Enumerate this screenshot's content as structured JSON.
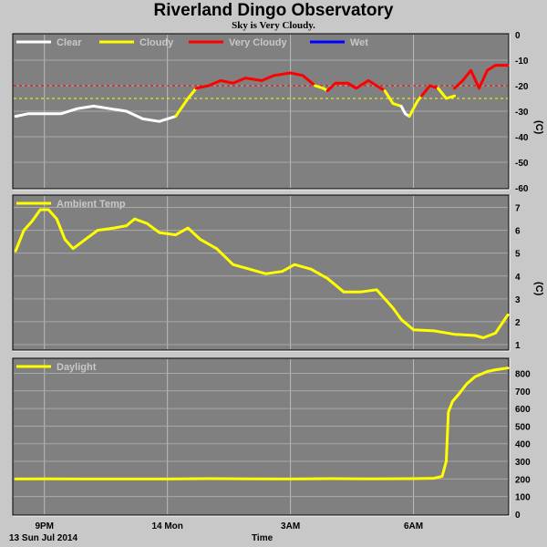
{
  "title": "Riverland Dingo Observatory",
  "subtitle": "Sky is Very Cloudy.",
  "xaxis": {
    "label": "Time",
    "date_label": "13 Sun Jul 2014",
    "ticks": [
      {
        "label": "9PM",
        "hour": 21
      },
      {
        "label": "14 Mon",
        "hour": 24
      },
      {
        "label": "3AM",
        "hour": 27
      },
      {
        "label": "6AM",
        "hour": 30
      }
    ],
    "start_hour": 20.25,
    "end_hour": 32.3
  },
  "chart_data": [
    {
      "type": "line",
      "name": "sky",
      "ylabel": "(C)",
      "ylim": [
        -60,
        0
      ],
      "yticks": [
        0,
        -10,
        -20,
        -30,
        -40,
        -50,
        -60
      ],
      "grid": true,
      "legend": [
        {
          "name": "Clear",
          "color": "#ffffff"
        },
        {
          "name": "Cloudy",
          "color": "#ffff00"
        },
        {
          "name": "Very Cloudy",
          "color": "#ff0000"
        },
        {
          "name": "Wet",
          "color": "#0000ff"
        }
      ],
      "thresholds": [
        {
          "value": -20,
          "color": "#ff0000"
        },
        {
          "value": -25,
          "color": "#ffff00"
        }
      ],
      "series": [
        {
          "name": "Clear",
          "color": "#ffffff",
          "x": [
            20.3,
            20.6,
            21.0,
            21.4,
            21.8,
            22.2,
            22.6,
            23.0,
            23.4,
            23.8,
            24.2
          ],
          "y": [
            -32,
            -31,
            -31,
            -31,
            -29,
            -28,
            -29,
            -30,
            -33,
            -34,
            -32
          ]
        },
        {
          "name": "Cloudy",
          "color": "#ffff00",
          "x": [
            24.2,
            24.5,
            24.7
          ],
          "y": [
            -32,
            -25,
            -21
          ]
        },
        {
          "name": "Very Cloudy",
          "color": "#ff0000",
          "x": [
            24.7,
            25.0,
            25.3,
            25.6,
            25.9,
            26.3,
            26.6,
            27.0,
            27.3,
            27.6
          ],
          "y": [
            -21,
            -20,
            -18,
            -19,
            -17,
            -18,
            -16,
            -15,
            -16,
            -20
          ]
        },
        {
          "name": "Cloudy",
          "color": "#ffff00",
          "x": [
            27.6,
            27.8,
            27.9
          ],
          "y": [
            -20,
            -21,
            -22
          ]
        },
        {
          "name": "Very Cloudy",
          "color": "#ff0000",
          "x": [
            27.9,
            28.1,
            28.4,
            28.6,
            28.9,
            29.1,
            29.3
          ],
          "y": [
            -22,
            -19,
            -19,
            -21,
            -18,
            -20,
            -22
          ]
        },
        {
          "name": "Cloudy",
          "color": "#ffff00",
          "x": [
            29.3,
            29.5,
            29.7
          ],
          "y": [
            -22,
            -27,
            -28
          ]
        },
        {
          "name": "Clear",
          "color": "#ffffff",
          "x": [
            29.7,
            29.8,
            29.9
          ],
          "y": [
            -28,
            -31,
            -32
          ]
        },
        {
          "name": "Cloudy",
          "color": "#ffff00",
          "x": [
            29.9,
            30.1,
            30.2
          ],
          "y": [
            -32,
            -26,
            -24
          ]
        },
        {
          "name": "Very Cloudy",
          "color": "#ff0000",
          "x": [
            30.2,
            30.4,
            30.6
          ],
          "y": [
            -24,
            -20,
            -21
          ]
        },
        {
          "name": "Cloudy",
          "color": "#ffff00",
          "x": [
            30.6,
            30.8,
            31.0
          ],
          "y": [
            -21,
            -25,
            -24
          ]
        },
        {
          "name": "Very Cloudy",
          "color": "#ff0000",
          "x": [
            31.0,
            31.2,
            31.4,
            31.6,
            31.8,
            32.0,
            32.3
          ],
          "y": [
            -21,
            -18,
            -14,
            -21,
            -14,
            -12,
            -12
          ]
        }
      ]
    },
    {
      "type": "line",
      "name": "ambient",
      "ylabel": "(C)",
      "ylim": [
        0.8,
        7.5
      ],
      "yticks": [
        1,
        2,
        3,
        4,
        5,
        6,
        7
      ],
      "grid": true,
      "legend": [
        {
          "name": "Ambient Temp",
          "color": "#ffff00"
        }
      ],
      "series": [
        {
          "name": "Ambient Temp",
          "color": "#ffff00",
          "x": [
            20.3,
            20.5,
            20.7,
            20.9,
            21.1,
            21.3,
            21.5,
            21.7,
            22.0,
            22.3,
            22.7,
            23.0,
            23.2,
            23.5,
            23.8,
            24.2,
            24.5,
            24.8,
            25.2,
            25.6,
            26.0,
            26.4,
            26.8,
            27.1,
            27.5,
            27.9,
            28.3,
            28.7,
            29.1,
            29.5,
            29.7,
            30.0,
            30.5,
            31.0,
            31.5,
            31.7,
            32.0,
            32.3
          ],
          "y": [
            5.1,
            6.0,
            6.4,
            6.9,
            6.9,
            6.5,
            5.6,
            5.2,
            5.6,
            6.0,
            6.1,
            6.2,
            6.5,
            6.3,
            5.9,
            5.8,
            6.1,
            5.6,
            5.2,
            4.5,
            4.3,
            4.1,
            4.2,
            4.5,
            4.3,
            3.9,
            3.3,
            3.3,
            3.4,
            2.6,
            2.1,
            1.65,
            1.6,
            1.45,
            1.4,
            1.3,
            1.5,
            2.3
          ]
        }
      ]
    },
    {
      "type": "line",
      "name": "daylight",
      "ylim": [
        0,
        880
      ],
      "yticks": [
        0,
        100,
        200,
        300,
        400,
        500,
        600,
        700,
        800
      ],
      "grid": true,
      "legend": [
        {
          "name": "Daylight",
          "color": "#ffff00"
        }
      ],
      "series": [
        {
          "name": "Daylight",
          "color": "#ffff00",
          "x": [
            20.3,
            21.0,
            22.0,
            23.0,
            24.0,
            25.0,
            26.0,
            27.0,
            28.0,
            29.0,
            30.0,
            30.5,
            30.7,
            30.8,
            30.85,
            30.95,
            31.1,
            31.3,
            31.5,
            31.8,
            32.0,
            32.3
          ],
          "y": [
            200,
            201,
            200,
            200,
            200,
            202,
            201,
            200,
            202,
            201,
            202,
            204,
            215,
            300,
            580,
            640,
            680,
            740,
            780,
            810,
            820,
            830
          ]
        }
      ]
    }
  ]
}
